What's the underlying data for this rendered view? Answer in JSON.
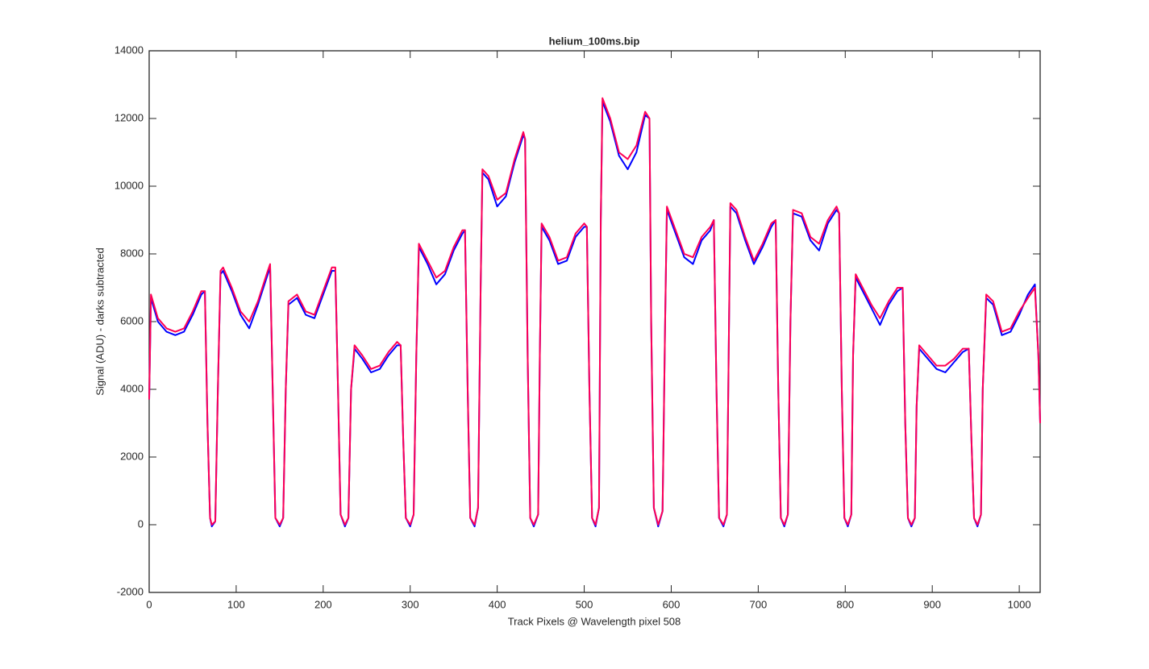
{
  "chart_data": {
    "type": "line",
    "title": "helium_100ms.bip",
    "x_label": "Track Pixels @ Wavelength pixel 508",
    "y_label": "Signal (ADU) - darks subtracted",
    "xlim": [
      0,
      1024
    ],
    "ylim": [
      -2000,
      14000
    ],
    "xticks": [
      0,
      100,
      200,
      300,
      400,
      500,
      600,
      700,
      800,
      900,
      1000
    ],
    "yticks": [
      -2000,
      0,
      2000,
      4000,
      6000,
      8000,
      10000,
      12000,
      14000
    ],
    "grid": false,
    "x": [
      0,
      2,
      10,
      20,
      30,
      40,
      50,
      60,
      64,
      67,
      70,
      72,
      76,
      79,
      82,
      85,
      95,
      105,
      115,
      125,
      135,
      139,
      142,
      145,
      150,
      154,
      157,
      160,
      170,
      180,
      190,
      200,
      210,
      214,
      217,
      220,
      225,
      229,
      232,
      236,
      245,
      255,
      265,
      275,
      285,
      289,
      292,
      295,
      300,
      304,
      307,
      310,
      320,
      330,
      340,
      350,
      360,
      363,
      366,
      369,
      374,
      378,
      381,
      383,
      390,
      400,
      410,
      420,
      430,
      432,
      435,
      438,
      442,
      447,
      449,
      451,
      460,
      470,
      480,
      490,
      500,
      503,
      506,
      509,
      513,
      517,
      519,
      521,
      530,
      540,
      550,
      560,
      570,
      575,
      577,
      580,
      585,
      590,
      593,
      595,
      605,
      615,
      625,
      635,
      645,
      649,
      652,
      655,
      660,
      664,
      666,
      668,
      675,
      685,
      695,
      705,
      715,
      720,
      723,
      726,
      730,
      734,
      737,
      740,
      750,
      760,
      770,
      780,
      790,
      793,
      796,
      799,
      803,
      807,
      809,
      812,
      820,
      830,
      840,
      850,
      860,
      866,
      869,
      872,
      876,
      880,
      882,
      885,
      895,
      905,
      915,
      925,
      935,
      942,
      945,
      948,
      952,
      956,
      958,
      962,
      970,
      980,
      990,
      1000,
      1010,
      1018,
      1022,
      1024
    ],
    "series": [
      {
        "color": "#0000ff",
        "values": [
          3700,
          6700,
          6000,
          5700,
          5600,
          5700,
          6200,
          6800,
          6900,
          3000,
          200,
          -50,
          100,
          4000,
          7400,
          7500,
          6900,
          6200,
          5800,
          6500,
          7300,
          7600,
          4000,
          200,
          -50,
          200,
          4000,
          6500,
          6700,
          6200,
          6100,
          6800,
          7500,
          7500,
          4000,
          300,
          -50,
          200,
          4000,
          5200,
          4900,
          4500,
          4600,
          5000,
          5300,
          5300,
          2500,
          200,
          -50,
          300,
          5000,
          8200,
          7700,
          7100,
          7400,
          8100,
          8600,
          8700,
          4000,
          200,
          -50,
          500,
          7000,
          10400,
          10200,
          9400,
          9700,
          10700,
          11500,
          11400,
          5000,
          200,
          -50,
          300,
          5000,
          8800,
          8400,
          7700,
          7800,
          8500,
          8800,
          8800,
          4000,
          200,
          -50,
          500,
          9000,
          12500,
          11900,
          10900,
          10500,
          11000,
          12100,
          12000,
          6000,
          500,
          -50,
          400,
          6000,
          9300,
          8600,
          7900,
          7700,
          8400,
          8700,
          9000,
          4000,
          200,
          -50,
          300,
          5000,
          9400,
          9200,
          8400,
          7700,
          8200,
          8800,
          9000,
          4000,
          200,
          -50,
          300,
          6000,
          9200,
          9100,
          8400,
          8100,
          8900,
          9300,
          9200,
          4000,
          200,
          -50,
          300,
          5000,
          7300,
          6900,
          6400,
          5900,
          6500,
          6900,
          7000,
          3000,
          200,
          -50,
          200,
          3500,
          5200,
          4900,
          4600,
          4500,
          4800,
          5100,
          5200,
          2500,
          200,
          -50,
          300,
          4000,
          6700,
          6500,
          5600,
          5700,
          6200,
          6800,
          7100,
          5000,
          3000
        ]
      },
      {
        "color": "#ff0055",
        "values": [
          3700,
          6800,
          6100,
          5800,
          5700,
          5800,
          6300,
          6900,
          6900,
          3000,
          200,
          0,
          100,
          4000,
          7500,
          7600,
          7000,
          6300,
          6000,
          6600,
          7400,
          7700,
          4000,
          200,
          0,
          200,
          4000,
          6600,
          6800,
          6300,
          6200,
          6900,
          7600,
          7600,
          4000,
          300,
          0,
          200,
          4000,
          5300,
          5000,
          4600,
          4700,
          5100,
          5400,
          5300,
          2500,
          200,
          0,
          300,
          5000,
          8300,
          7800,
          7300,
          7500,
          8200,
          8700,
          8700,
          4000,
          200,
          0,
          500,
          7000,
          10500,
          10300,
          9600,
          9800,
          10800,
          11600,
          11400,
          5000,
          200,
          0,
          300,
          5000,
          8900,
          8500,
          7800,
          7900,
          8600,
          8900,
          8800,
          4000,
          200,
          0,
          500,
          9000,
          12600,
          12000,
          11000,
          10800,
          11200,
          12200,
          12000,
          6000,
          500,
          0,
          400,
          6000,
          9400,
          8700,
          8000,
          7900,
          8500,
          8800,
          9000,
          4000,
          200,
          0,
          300,
          5000,
          9500,
          9300,
          8500,
          7800,
          8300,
          8900,
          9000,
          4000,
          200,
          0,
          300,
          6000,
          9300,
          9200,
          8500,
          8300,
          9000,
          9400,
          9200,
          4000,
          200,
          0,
          300,
          5000,
          7400,
          7000,
          6500,
          6100,
          6600,
          7000,
          7000,
          3000,
          200,
          0,
          200,
          3500,
          5300,
          5000,
          4700,
          4700,
          4900,
          5200,
          5200,
          2500,
          200,
          0,
          300,
          4000,
          6800,
          6600,
          5700,
          5800,
          6300,
          6700,
          7000,
          5000,
          3000
        ]
      }
    ]
  }
}
